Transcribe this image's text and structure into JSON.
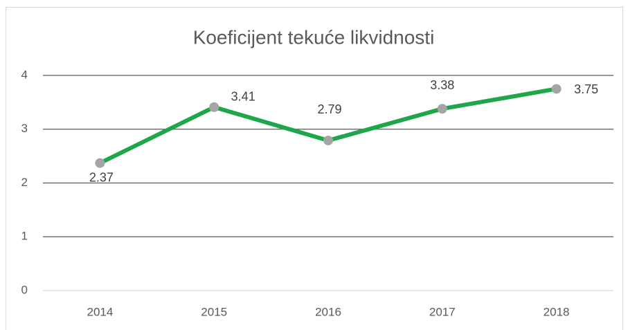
{
  "chart_data": {
    "type": "line",
    "title": "Koeficijent tekuće likvidnosti",
    "categories": [
      "2014",
      "2015",
      "2016",
      "2017",
      "2018"
    ],
    "series": [
      {
        "name": "Koeficijent tekuće likvidnosti",
        "color": "#1ea64a",
        "marker_color": "#a5a5a5",
        "values": [
          2.37,
          3.41,
          2.79,
          3.38,
          3.75
        ]
      }
    ],
    "ylim": [
      0,
      4
    ],
    "yticks": [
      0,
      1,
      2,
      3,
      4
    ],
    "grid": true
  }
}
